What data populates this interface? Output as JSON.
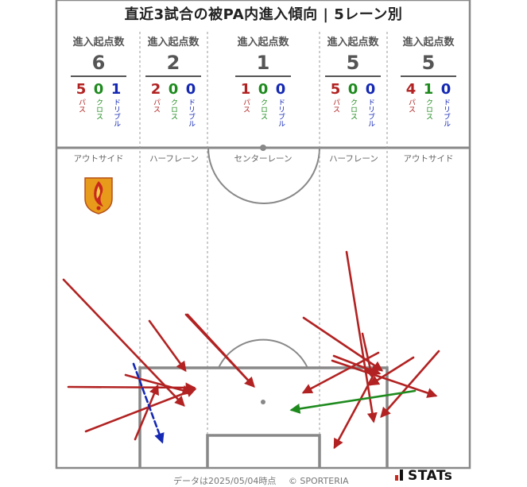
{
  "title": "直近3試合の被PA内進入傾向 | 5レーン別",
  "lane_header_label": "進入起点数",
  "breakdown_labels": {
    "pass": "パス",
    "cross": "クロス",
    "dribble": "ドリブル"
  },
  "colors": {
    "pass": "#b22222",
    "cross": "#1e8a1e",
    "dribble": "#1428b4",
    "pitch_line": "#888888"
  },
  "lanes": [
    {
      "zone": "アウトサイド",
      "total": "6",
      "pass": "5",
      "cross": "0",
      "dribble": "1"
    },
    {
      "zone": "ハーフレーン",
      "total": "2",
      "pass": "2",
      "cross": "0",
      "dribble": "0"
    },
    {
      "zone": "センターレーン",
      "total": "1",
      "pass": "1",
      "cross": "0",
      "dribble": "0"
    },
    {
      "zone": "ハーフレーン",
      "total": "5",
      "pass": "5",
      "cross": "0",
      "dribble": "0"
    },
    {
      "zone": "アウトサイド",
      "total": "5",
      "pass": "4",
      "cross": "1",
      "dribble": "0"
    }
  ],
  "chart_data": {
    "type": "arrow-map",
    "lanes": [
      "アウトサイド",
      "ハーフレーン",
      "センターレーン",
      "ハーフレーン",
      "アウトサイド"
    ],
    "entries": [
      {
        "type": "pass",
        "from": [
          80,
          352
        ],
        "to": [
          231,
          510
        ]
      },
      {
        "type": "pass",
        "from": [
          86,
          487
        ],
        "to": [
          244,
          488
        ]
      },
      {
        "type": "pass",
        "from": [
          108,
          543
        ],
        "to": [
          245,
          490
        ]
      },
      {
        "type": "pass",
        "from": [
          158,
          472
        ],
        "to": [
          240,
          494
        ]
      },
      {
        "type": "pass",
        "from": [
          170,
          553
        ],
        "to": [
          198,
          486
        ]
      },
      {
        "type": "dribble",
        "from": [
          168,
          458
        ],
        "to": [
          204,
          556
        ]
      },
      {
        "type": "pass",
        "from": [
          188,
          404
        ],
        "to": [
          233,
          466
        ]
      },
      {
        "type": "pass",
        "from": [
          236,
          396
        ],
        "to": [
          319,
          486
        ]
      },
      {
        "type": "pass",
        "from": [
          234,
          396
        ],
        "to": [
          319,
          486
        ]
      },
      {
        "type": "pass",
        "from": [
          436,
          317
        ],
        "to": [
          470,
          530
        ]
      },
      {
        "type": "pass",
        "from": [
          382,
          400
        ],
        "to": [
          480,
          466
        ]
      },
      {
        "type": "pass",
        "from": [
          418,
          454
        ],
        "to": [
          548,
          498
        ]
      },
      {
        "type": "pass",
        "from": [
          456,
          420
        ],
        "to": [
          468,
          474
        ]
      },
      {
        "type": "pass",
        "from": [
          476,
          444
        ],
        "to": [
          382,
          494
        ]
      },
      {
        "type": "pass",
        "from": [
          420,
          448
        ],
        "to": [
          477,
          470
        ]
      },
      {
        "type": "pass",
        "from": [
          520,
          450
        ],
        "to": [
          466,
          484
        ]
      },
      {
        "type": "pass",
        "from": [
          552,
          442
        ],
        "to": [
          480,
          524
        ]
      },
      {
        "type": "pass",
        "from": [
          470,
          472
        ],
        "to": [
          421,
          563
        ]
      },
      {
        "type": "cross",
        "from": [
          522,
          492
        ],
        "to": [
          367,
          516
        ]
      }
    ]
  },
  "footer": {
    "data_date": "データは2025/05/04時点",
    "copyright": "© SPORTERIA"
  },
  "brand": {
    "name": "STATs"
  }
}
